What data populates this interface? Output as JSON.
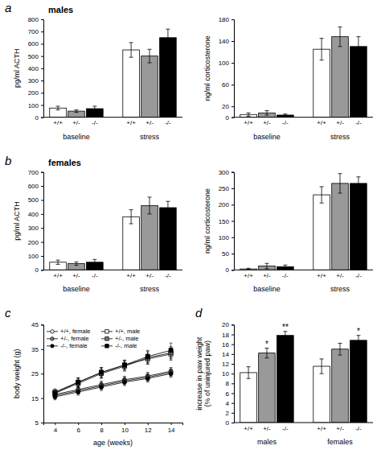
{
  "chart_data": [
    {
      "type": "bar",
      "panel": "a",
      "title": "males",
      "y_label": "pg/ml ACTH",
      "categories": [
        "+/+",
        "+/-",
        "-/-"
      ],
      "colors": [
        "#ffffff",
        "#999999",
        "#000000"
      ],
      "series": [
        {
          "name": "baseline",
          "values": [
            75,
            50,
            70
          ],
          "errors": [
            15,
            10,
            20
          ]
        },
        {
          "name": "stress",
          "values": [
            550,
            500,
            650
          ],
          "errors": [
            60,
            55,
            70
          ]
        }
      ],
      "ylim": [
        0,
        800
      ],
      "yticks": [
        0,
        100,
        200,
        300,
        400,
        500,
        600,
        700,
        800
      ]
    },
    {
      "type": "bar",
      "y_label": "ng/ml corticosterone",
      "categories": [
        "+/+",
        "+/-",
        "-/-"
      ],
      "colors": [
        "#ffffff",
        "#999999",
        "#000000"
      ],
      "series": [
        {
          "name": "baseline",
          "values": [
            5,
            8,
            4
          ],
          "errors": [
            3,
            4,
            2
          ]
        },
        {
          "name": "stress",
          "values": [
            125,
            148,
            130
          ],
          "errors": [
            20,
            18,
            18
          ]
        }
      ],
      "ylim": [
        0,
        180
      ],
      "yticks": [
        0,
        20,
        60,
        100,
        140,
        180
      ]
    },
    {
      "type": "bar",
      "panel": "b",
      "title": "females",
      "y_label": "pg/ml ACTH",
      "categories": [
        "+/+",
        "+/-",
        "-/-"
      ],
      "colors": [
        "#ffffff",
        "#999999",
        "#000000"
      ],
      "series": [
        {
          "name": "baseline",
          "values": [
            55,
            45,
            55
          ],
          "errors": [
            15,
            12,
            20
          ]
        },
        {
          "name": "stress",
          "values": [
            380,
            460,
            445
          ],
          "errors": [
            50,
            60,
            45
          ]
        }
      ],
      "ylim": [
        0,
        700
      ],
      "yticks": [
        0,
        100,
        200,
        300,
        400,
        500,
        600,
        700
      ]
    },
    {
      "type": "bar",
      "y_label": "ng/ml corticosterone",
      "categories": [
        "+/+",
        "+/-",
        "-/-"
      ],
      "colors": [
        "#ffffff",
        "#999999",
        "#000000"
      ],
      "series": [
        {
          "name": "baseline",
          "values": [
            3,
            12,
            10
          ],
          "errors": [
            2,
            8,
            5
          ]
        },
        {
          "name": "stress",
          "values": [
            230,
            265,
            265
          ],
          "errors": [
            25,
            30,
            20
          ]
        }
      ],
      "ylim": [
        0,
        300
      ],
      "yticks": [
        0,
        50,
        100,
        150,
        200,
        250,
        300
      ]
    },
    {
      "type": "line",
      "panel": "c",
      "x_label": "age (weeks)",
      "y_label": "body weight (g)",
      "x": [
        4,
        6,
        8,
        10,
        12,
        14
      ],
      "series": [
        {
          "name": "+/+, female",
          "color": "#ffffff",
          "marker": "circle",
          "values": [
            16.5,
            18.5,
            20.5,
            22.5,
            24.0,
            26.0
          ],
          "errors": [
            1.2,
            1.3,
            1.4,
            1.4,
            1.5,
            1.5
          ]
        },
        {
          "name": "+/-, female",
          "color": "#808080",
          "marker": "circle",
          "values": [
            16.0,
            18.0,
            20.0,
            22.0,
            23.5,
            25.5
          ],
          "errors": [
            1.2,
            1.3,
            1.4,
            1.4,
            1.5,
            1.5
          ]
        },
        {
          "name": "-/-, female",
          "color": "#000000",
          "marker": "circle",
          "values": [
            15.5,
            17.5,
            19.5,
            21.5,
            23.0,
            25.0
          ],
          "errors": [
            1.2,
            1.3,
            1.4,
            1.4,
            1.5,
            1.5
          ]
        },
        {
          "name": "+/+, male",
          "color": "#ffffff",
          "marker": "square",
          "values": [
            17.5,
            21.5,
            25.5,
            28.5,
            31.0,
            33.0
          ],
          "errors": [
            1.3,
            1.8,
            2.0,
            2.0,
            2.2,
            2.5
          ]
        },
        {
          "name": "+/-, male",
          "color": "#808080",
          "marker": "square",
          "values": [
            17.0,
            21.0,
            25.0,
            28.0,
            31.5,
            33.5
          ],
          "errors": [
            1.3,
            1.8,
            2.0,
            2.0,
            2.5,
            2.5
          ]
        },
        {
          "name": "-/-, male",
          "color": "#000000",
          "marker": "square",
          "values": [
            17.0,
            21.5,
            25.5,
            28.5,
            32.0,
            34.5
          ],
          "errors": [
            1.3,
            1.8,
            2.0,
            2.0,
            2.5,
            3.0
          ]
        }
      ],
      "xlim": [
        3,
        15
      ],
      "xticks": [
        4,
        6,
        8,
        10,
        12,
        14
      ],
      "ylim": [
        5,
        45
      ],
      "yticks": [
        5,
        15,
        25,
        35,
        45
      ],
      "legend": "upper left"
    },
    {
      "type": "bar",
      "panel": "d",
      "y_label": "increase in paw weight\n(% of uninjured paw)",
      "categories": [
        "+/+",
        "+/-",
        "-/-"
      ],
      "colors": [
        "#ffffff",
        "#999999",
        "#000000"
      ],
      "series": [
        {
          "name": "males",
          "values": [
            10.2,
            14.2,
            17.8
          ],
          "errors": [
            1.2,
            1.0,
            0.8
          ]
        },
        {
          "name": "females",
          "values": [
            11.5,
            15.0,
            16.8
          ],
          "errors": [
            1.5,
            1.2,
            1.0
          ]
        }
      ],
      "ylim": [
        0,
        20
      ],
      "yticks": [
        0,
        2,
        4,
        6,
        8,
        10,
        12,
        14,
        16,
        18,
        20
      ],
      "annotations": [
        {
          "text": "*",
          "series": "males",
          "category": "+/-"
        },
        {
          "text": "**",
          "series": "males",
          "category": "-/-"
        },
        {
          "text": "*",
          "series": "females",
          "category": "-/-"
        }
      ]
    }
  ]
}
